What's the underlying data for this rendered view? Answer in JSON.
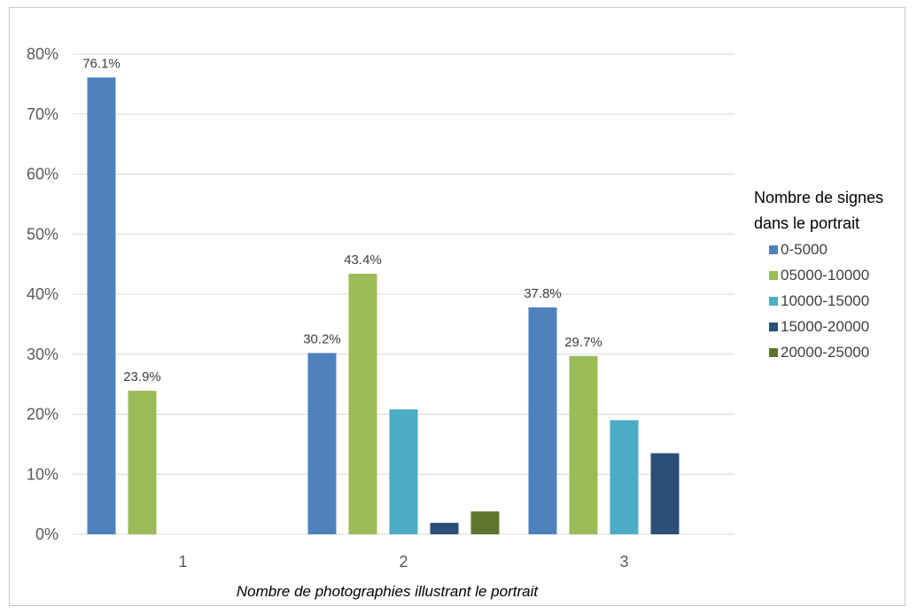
{
  "chart_data": {
    "type": "bar",
    "xlabel": "Nombre de photographies illustrant le portrait",
    "ylabel": "",
    "ylim": [
      0,
      0.8
    ],
    "yticks": [
      "0%",
      "10%",
      "20%",
      "30%",
      "40%",
      "50%",
      "60%",
      "70%",
      "80%"
    ],
    "categories": [
      "1",
      "2",
      "3"
    ],
    "grid": true,
    "legend_position": "right",
    "legend_title": "Nombre de signes dans le portrait",
    "series": [
      {
        "name": "0-5000",
        "color": "#4f81bd",
        "values": [
          0.761,
          0.302,
          0.378
        ],
        "labels": [
          "76.1%",
          "30.2%",
          "37.8%"
        ]
      },
      {
        "name": "05000-10000",
        "color": "#9bbb59",
        "values": [
          0.239,
          0.434,
          0.297
        ],
        "labels": [
          "23.9%",
          "43.4%",
          "29.7%"
        ]
      },
      {
        "name": "10000-15000",
        "color": "#4bacc6",
        "values": [
          0,
          0.208,
          0.19
        ],
        "labels": [
          "",
          "",
          ""
        ]
      },
      {
        "name": "15000-20000",
        "color": "#2c4d75",
        "values": [
          0,
          0.019,
          0.135
        ],
        "labels": [
          "",
          "",
          ""
        ]
      },
      {
        "name": "20000-25000",
        "color": "#5f7530",
        "values": [
          0,
          0.038,
          0
        ],
        "labels": [
          "",
          "",
          ""
        ]
      }
    ]
  }
}
